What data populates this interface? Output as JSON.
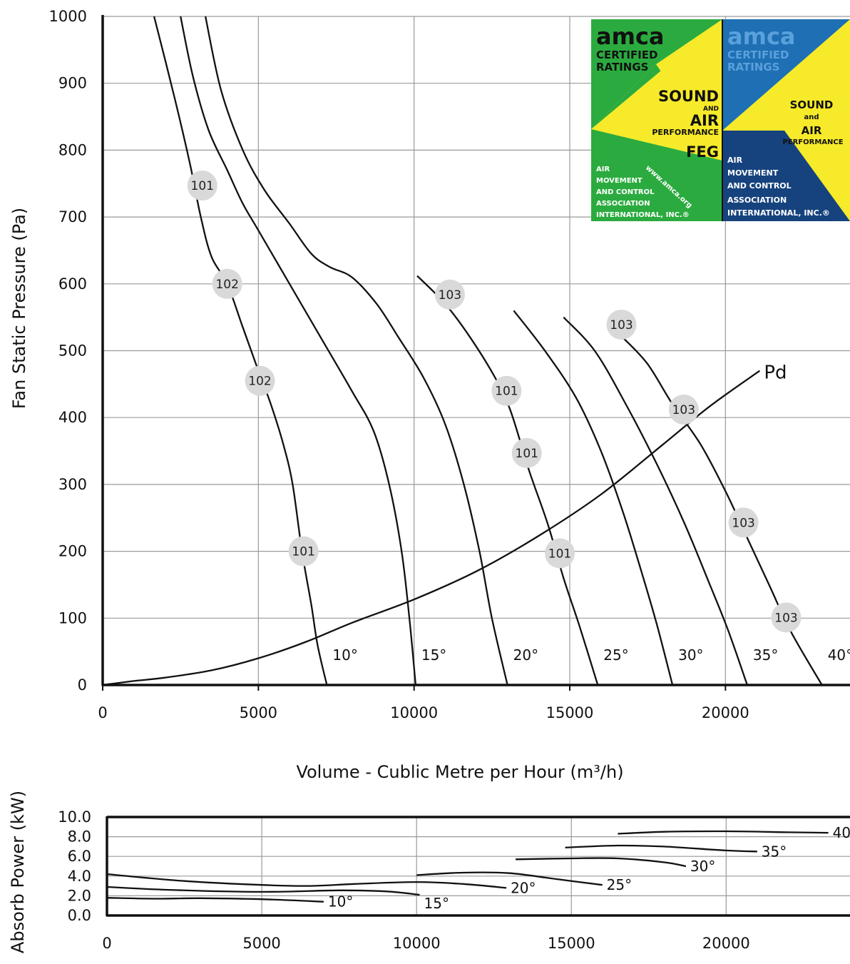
{
  "chart_data": [
    {
      "type": "line",
      "xlabel": "Volume - Cublic Metre per Hour (m³/h)",
      "ylabel": "Fan Static Pressure (Pa)",
      "xlim": [
        0,
        24000
      ],
      "ylim": [
        0,
        1000
      ],
      "x_ticks": [
        "0",
        "5000",
        "10000",
        "15000",
        "20000"
      ],
      "y_ticks": [
        "0",
        "100",
        "200",
        "300",
        "400",
        "500",
        "600",
        "700",
        "800",
        "900",
        "1000"
      ],
      "grid": true,
      "series": [
        {
          "name": "10°",
          "points": [
            [
              1650,
              1000
            ],
            [
              2300,
              880
            ],
            [
              2800,
              780
            ],
            [
              3150,
              700
            ],
            [
              3500,
              640
            ],
            [
              4000,
              600
            ],
            [
              4500,
              535
            ],
            [
              5000,
              470
            ],
            [
              5400,
              420
            ],
            [
              5800,
              360
            ],
            [
              6100,
              300
            ],
            [
              6400,
              200
            ],
            [
              6700,
              120
            ],
            [
              6900,
              60
            ],
            [
              7200,
              0
            ]
          ]
        },
        {
          "name": "15°",
          "points": [
            [
              2500,
              1000
            ],
            [
              2900,
              910
            ],
            [
              3400,
              830
            ],
            [
              4000,
              770
            ],
            [
              4500,
              720
            ],
            [
              5000,
              680
            ],
            [
              6000,
              600
            ],
            [
              7000,
              520
            ],
            [
              8000,
              440
            ],
            [
              8700,
              380
            ],
            [
              9200,
              300
            ],
            [
              9600,
              200
            ],
            [
              9850,
              100
            ],
            [
              10050,
              0
            ]
          ]
        },
        {
          "name": "20°",
          "points": [
            [
              3300,
              1000
            ],
            [
              3800,
              890
            ],
            [
              4500,
              800
            ],
            [
              5200,
              740
            ],
            [
              6000,
              690
            ],
            [
              6700,
              645
            ],
            [
              7300,
              625
            ],
            [
              8000,
              610
            ],
            [
              8800,
              570
            ],
            [
              9500,
              520
            ],
            [
              10300,
              460
            ],
            [
              11000,
              390
            ],
            [
              11600,
              300
            ],
            [
              12100,
              200
            ],
            [
              12500,
              100
            ],
            [
              13000,
              0
            ]
          ]
        },
        {
          "name": "25°",
          "points": [
            [
              10100,
              612
            ],
            [
              11000,
              570
            ],
            [
              11800,
              520
            ],
            [
              12600,
              460
            ],
            [
              13100,
              410
            ],
            [
              13700,
              320
            ],
            [
              14300,
              240
            ],
            [
              14800,
              160
            ],
            [
              15300,
              90
            ],
            [
              15900,
              0
            ]
          ]
        },
        {
          "name": "30°",
          "points": [
            [
              13200,
              560
            ],
            [
              14200,
              500
            ],
            [
              15200,
              430
            ],
            [
              16000,
              350
            ],
            [
              16700,
              260
            ],
            [
              17300,
              170
            ],
            [
              17800,
              90
            ],
            [
              18300,
              0
            ]
          ]
        },
        {
          "name": "35°",
          "points": [
            [
              14800,
              550
            ],
            [
              15800,
              500
            ],
            [
              16800,
              420
            ],
            [
              17800,
              330
            ],
            [
              18700,
              240
            ],
            [
              19500,
              150
            ],
            [
              20100,
              80
            ],
            [
              20700,
              0
            ]
          ]
        },
        {
          "name": "40°",
          "points": [
            [
              16700,
              520
            ],
            [
              17500,
              480
            ],
            [
              18300,
              420
            ],
            [
              19200,
              360
            ],
            [
              20000,
              290
            ],
            [
              20700,
              220
            ],
            [
              21400,
              150
            ],
            [
              22100,
              80
            ],
            [
              23100,
              0
            ]
          ]
        },
        {
          "name": "Pd",
          "points": [
            [
              0,
              0
            ],
            [
              1000,
              6
            ],
            [
              2000,
              11
            ],
            [
              3500,
              22
            ],
            [
              5000,
              40
            ],
            [
              6500,
              64
            ],
            [
              8000,
              93
            ],
            [
              10000,
              128
            ],
            [
              12000,
              170
            ],
            [
              14000,
              223
            ],
            [
              16000,
              285
            ],
            [
              18000,
              360
            ],
            [
              19500,
              417
            ],
            [
              21100,
              470
            ]
          ]
        }
      ],
      "angle_labels": [
        "10°",
        "15°",
        "20°",
        "25°",
        "30°",
        "35°",
        "40°"
      ],
      "pd_label": "Pd",
      "badges": [
        {
          "text": "101",
          "x": 3200,
          "y": 747
        },
        {
          "text": "102",
          "x": 4000,
          "y": 600
        },
        {
          "text": "102",
          "x": 5050,
          "y": 455
        },
        {
          "text": "101",
          "x": 6450,
          "y": 200
        },
        {
          "text": "103",
          "x": 11150,
          "y": 584
        },
        {
          "text": "101",
          "x": 12970,
          "y": 440
        },
        {
          "text": "101",
          "x": 13620,
          "y": 347
        },
        {
          "text": "101",
          "x": 14680,
          "y": 197
        },
        {
          "text": "103",
          "x": 16660,
          "y": 539
        },
        {
          "text": "103",
          "x": 18660,
          "y": 412
        },
        {
          "text": "103",
          "x": 20580,
          "y": 243
        },
        {
          "text": "103",
          "x": 21950,
          "y": 101
        }
      ]
    },
    {
      "type": "line",
      "ylabel": "Absorb Power (kW)",
      "xlim": [
        0,
        24000
      ],
      "ylim": [
        0,
        10
      ],
      "x_ticks": [
        "0",
        "5000",
        "10000",
        "15000",
        "20000"
      ],
      "y_ticks": [
        "0.0",
        "2.0",
        "4.0",
        "6.0",
        "8.0",
        "10.0"
      ],
      "grid": true,
      "series": [
        {
          "name": "10°",
          "points": [
            [
              0,
              1.8
            ],
            [
              1500,
              1.7
            ],
            [
              3000,
              1.75
            ],
            [
              5000,
              1.65
            ],
            [
              7000,
              1.4
            ]
          ]
        },
        {
          "name": "15°",
          "points": [
            [
              0,
              2.9
            ],
            [
              2000,
              2.6
            ],
            [
              5000,
              2.4
            ],
            [
              7500,
              2.55
            ],
            [
              9000,
              2.45
            ],
            [
              10100,
              2.1
            ]
          ]
        },
        {
          "name": "20°",
          "points": [
            [
              0,
              4.2
            ],
            [
              2500,
              3.5
            ],
            [
              5000,
              3.1
            ],
            [
              6500,
              3.0
            ],
            [
              8000,
              3.2
            ],
            [
              10000,
              3.4
            ],
            [
              11500,
              3.2
            ],
            [
              12900,
              2.8
            ]
          ]
        },
        {
          "name": "25°",
          "points": [
            [
              10000,
              4.1
            ],
            [
              11500,
              4.35
            ],
            [
              13000,
              4.3
            ],
            [
              14500,
              3.7
            ],
            [
              16000,
              3.1
            ]
          ]
        },
        {
          "name": "30°",
          "points": [
            [
              13200,
              5.7
            ],
            [
              15000,
              5.8
            ],
            [
              16500,
              5.8
            ],
            [
              18000,
              5.4
            ],
            [
              18700,
              5.0
            ]
          ]
        },
        {
          "name": "35°",
          "points": [
            [
              14800,
              6.9
            ],
            [
              16500,
              7.1
            ],
            [
              18000,
              7.0
            ],
            [
              20000,
              6.6
            ],
            [
              21000,
              6.5
            ]
          ]
        },
        {
          "name": "40°",
          "points": [
            [
              16500,
              8.3
            ],
            [
              18000,
              8.5
            ],
            [
              20000,
              8.55
            ],
            [
              22000,
              8.45
            ],
            [
              23300,
              8.4
            ]
          ]
        }
      ],
      "angle_labels": [
        "10°",
        "15°",
        "20°",
        "25°",
        "30°",
        "35°",
        "40"
      ]
    }
  ],
  "logo_green": {
    "brand": "amca",
    "line1": "CERTIFIED",
    "line2": "RATINGS",
    "sound": "SOUND",
    "and": "AND",
    "air": "AIR",
    "performance": "PERFORMANCE",
    "feg": "FEG",
    "url": "www.amca.org",
    "org1": "AIR",
    "org2": "MOVEMENT",
    "org3": "AND CONTROL",
    "org4": "ASSOCIATION",
    "org5": "INTERNATIONAL, INC.®",
    "colors": {
      "green": "#2bab3f",
      "yellow": "#f6ea2a"
    }
  },
  "logo_blue": {
    "brand": "amca",
    "line1": "CERTIFIED",
    "line2": "RATINGS",
    "sound": "SOUND",
    "and": "and",
    "air": "AIR",
    "performance": "PERFORMANCE",
    "org1": "AIR",
    "org2": "MOVEMENT",
    "org3": "AND CONTROL",
    "org4": "ASSOCIATION",
    "org5": "INTERNATIONAL, INC.®",
    "colors": {
      "blue": "#1e6fb3",
      "darkblue": "#16437e",
      "yellow": "#f6ea2a"
    }
  }
}
